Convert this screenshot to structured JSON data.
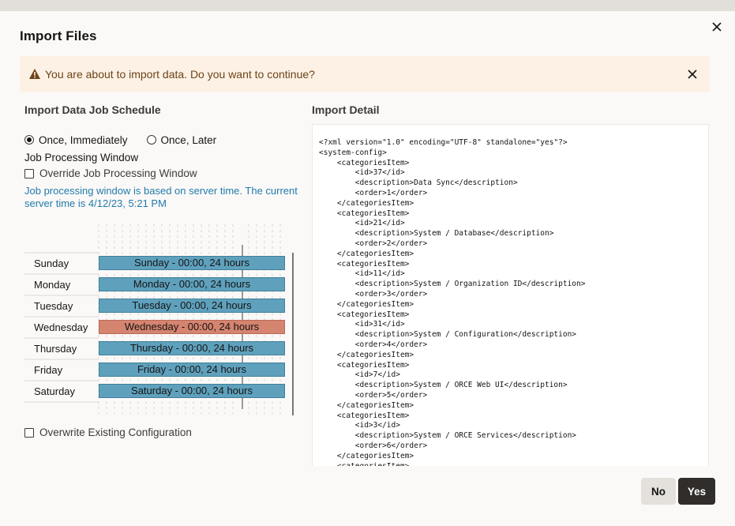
{
  "dialog": {
    "title": "Import Files"
  },
  "banner": {
    "text": "You are about to import data. Do you want to continue?"
  },
  "schedule": {
    "heading": "Import Data Job Schedule",
    "options": [
      "Once, Immediately",
      "Once, Later"
    ],
    "selected": "Once, Immediately",
    "window_heading": "Job Processing Window",
    "override_label": "Override Job Processing Window",
    "info": "Job processing window is based on server time. The current server time is 4/12/23, 5:21 PM",
    "days": [
      {
        "day": "Sunday",
        "bar": "Sunday - 00:00, 24 hours"
      },
      {
        "day": "Monday",
        "bar": "Monday - 00:00, 24 hours"
      },
      {
        "day": "Tuesday",
        "bar": "Tuesday - 00:00, 24 hours"
      },
      {
        "day": "Wednesday",
        "bar": "Wednesday - 00:00, 24 hours"
      },
      {
        "day": "Thursday",
        "bar": "Thursday - 00:00, 24 hours"
      },
      {
        "day": "Friday",
        "bar": "Friday - 00:00, 24 hours"
      },
      {
        "day": "Saturday",
        "bar": "Saturday - 00:00, 24 hours"
      }
    ],
    "overwrite_label": "Overwrite Existing Configuration"
  },
  "detail": {
    "heading": "Import Detail",
    "xml": "<?xml version=\"1.0\" encoding=\"UTF-8\" standalone=\"yes\"?>\n<system-config>\n    <categoriesItem>\n        <id>37</id>\n        <description>Data Sync</description>\n        <order>1</order>\n    </categoriesItem>\n    <categoriesItem>\n        <id>21</id>\n        <description>System / Database</description>\n        <order>2</order>\n    </categoriesItem>\n    <categoriesItem>\n        <id>11</id>\n        <description>System / Organization ID</description>\n        <order>3</order>\n    </categoriesItem>\n    <categoriesItem>\n        <id>31</id>\n        <description>System / Configuration</description>\n        <order>4</order>\n    </categoriesItem>\n    <categoriesItem>\n        <id>7</id>\n        <description>System / ORCE Web UI</description>\n        <order>5</order>\n    </categoriesItem>\n    <categoriesItem>\n        <id>3</id>\n        <description>System / ORCE Services</description>\n        <order>6</order>\n    </categoriesItem>\n    <categoriesItem>"
  },
  "buttons": {
    "no": "No",
    "yes": "Yes"
  }
}
